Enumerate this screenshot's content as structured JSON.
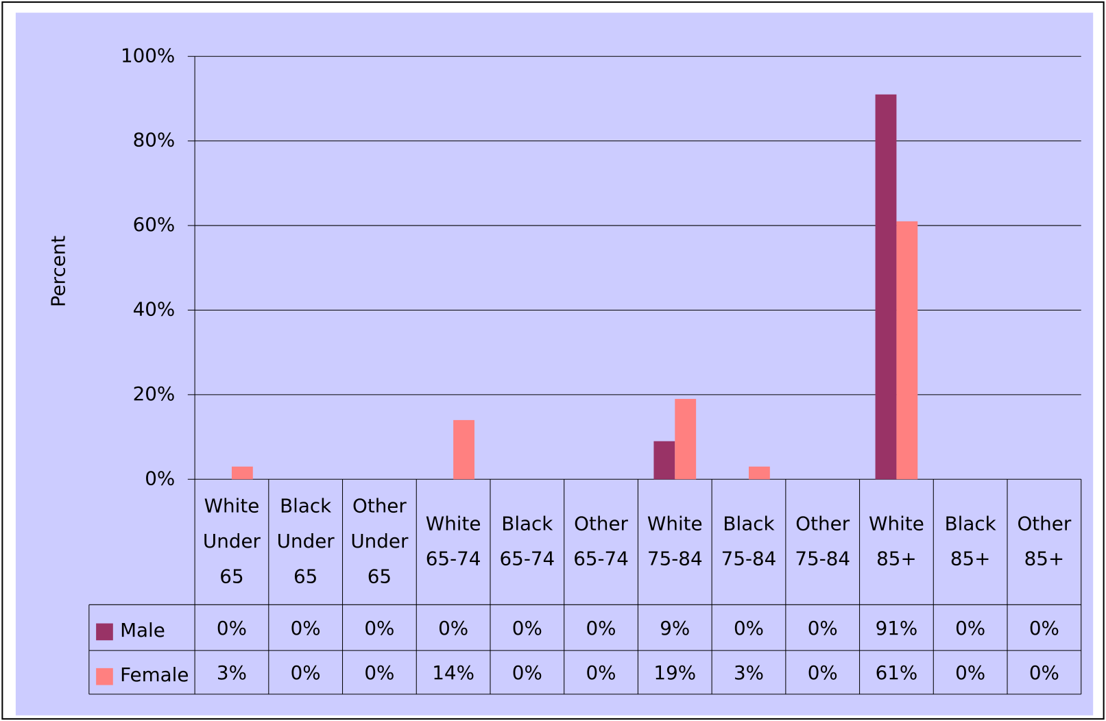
{
  "chart_data": {
    "type": "bar",
    "y_label": "Percent",
    "categories": [
      "White Under 65",
      "Black Under 65",
      "Other Under 65",
      "White 65-74",
      "Black 65-74",
      "Other 65-74",
      "White 75-84",
      "Black 75-84",
      "Other 75-84",
      "White 85+",
      "Black 85+",
      "Other 85+"
    ],
    "series": [
      {
        "name": "Male",
        "color": "#993366",
        "values": [
          0,
          0,
          0,
          0,
          0,
          0,
          9,
          0,
          0,
          91,
          0,
          0
        ],
        "value_labels": [
          "0%",
          "0%",
          "0%",
          "0%",
          "0%",
          "0%",
          "9%",
          "0%",
          "0%",
          "91%",
          "0%",
          "0%"
        ]
      },
      {
        "name": "Female",
        "color": "#ff8080",
        "values": [
          3,
          0,
          0,
          14,
          0,
          0,
          19,
          3,
          0,
          61,
          0,
          0
        ],
        "value_labels": [
          "3%",
          "0%",
          "0%",
          "14%",
          "0%",
          "0%",
          "19%",
          "3%",
          "0%",
          "61%",
          "0%",
          "0%"
        ]
      }
    ],
    "ylim": [
      0,
      100
    ],
    "yticks": [
      {
        "value": 0,
        "label": "0%"
      },
      {
        "value": 20,
        "label": "20%"
      },
      {
        "value": 40,
        "label": "40%"
      },
      {
        "value": 60,
        "label": "60%"
      },
      {
        "value": 80,
        "label": "80%"
      },
      {
        "value": 100,
        "label": "100%"
      }
    ],
    "grid": true,
    "data_table": true
  }
}
